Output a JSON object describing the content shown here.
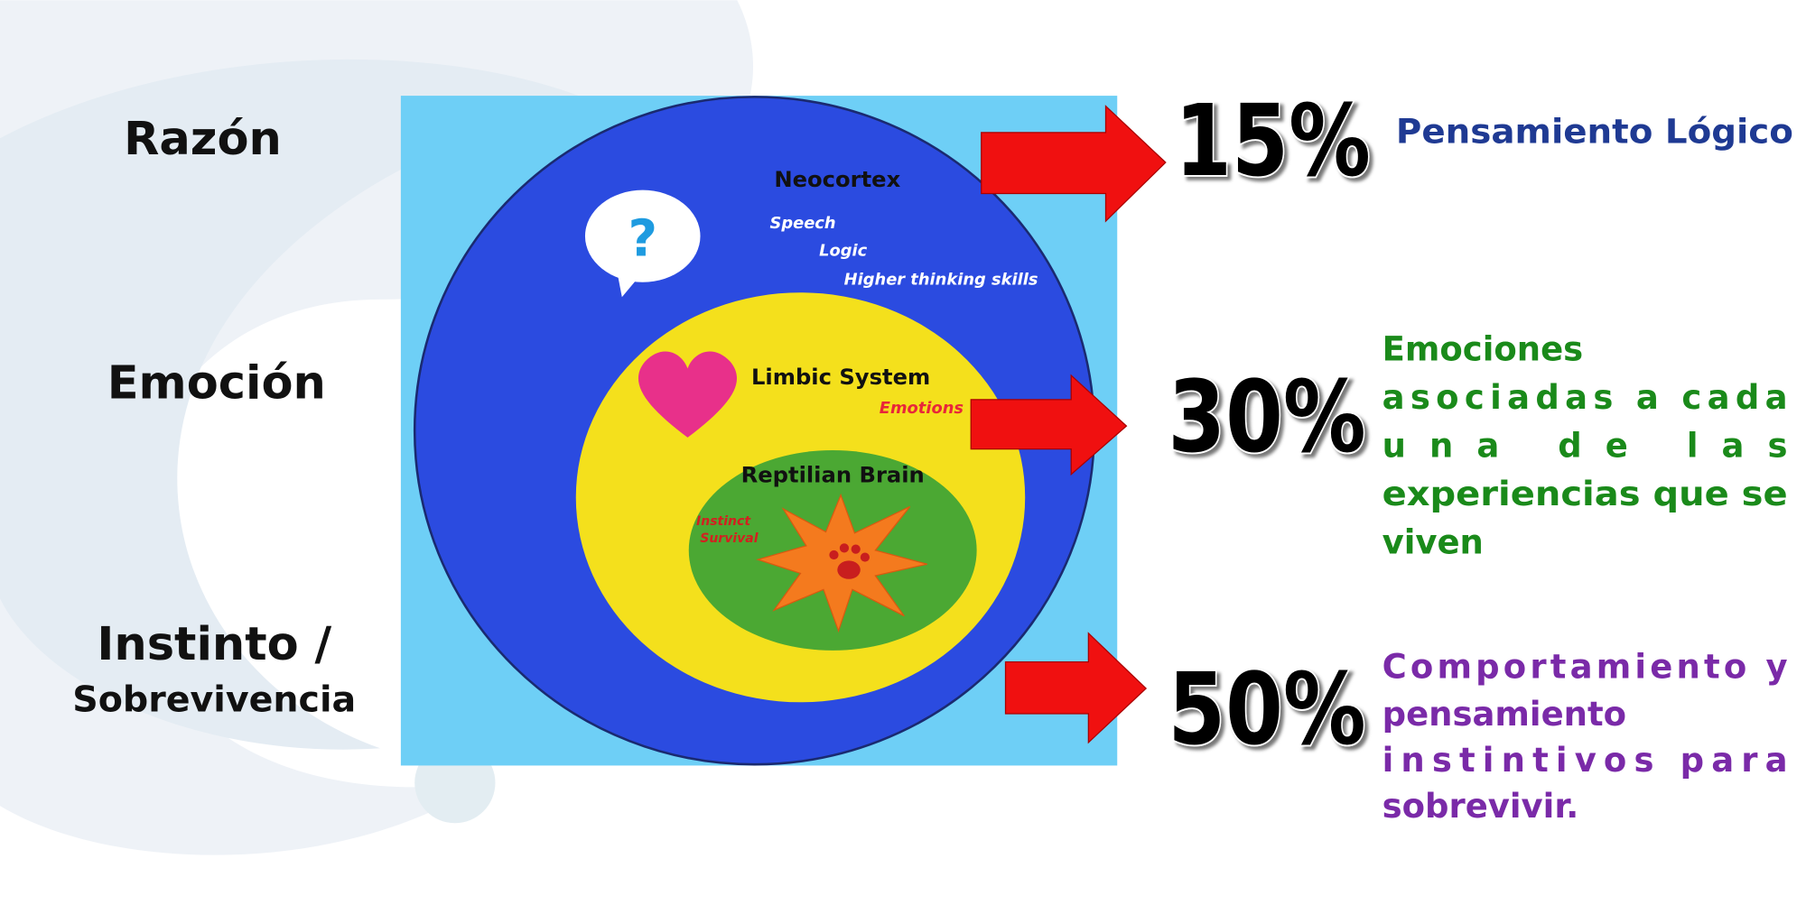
{
  "left_labels": [
    "Razón",
    "Emoción",
    "Instinto /",
    "Sobrevivencia"
  ],
  "diagram": {
    "neocortex": {
      "title": "Neocortex",
      "items": [
        "Speech",
        "Logic",
        "Higher thinking skills"
      ]
    },
    "limbic": {
      "title": "Limbic System",
      "items": [
        "Emotions"
      ]
    },
    "reptilian": {
      "title": "Reptilian Brain",
      "items": [
        "Instinct",
        "Survival"
      ]
    },
    "bubble": "?"
  },
  "levels": [
    {
      "percent": "15%",
      "description": [
        "Pensamiento Lógico"
      ]
    },
    {
      "percent": "30%",
      "description": [
        "Emociones",
        "asociadas a cada",
        "una de las",
        "experiencias que se",
        "viven"
      ]
    },
    {
      "percent": "50%",
      "description": [
        "Comportamiento y",
        "pensamiento",
        "instintivos para",
        "sobrevivir."
      ]
    }
  ]
}
